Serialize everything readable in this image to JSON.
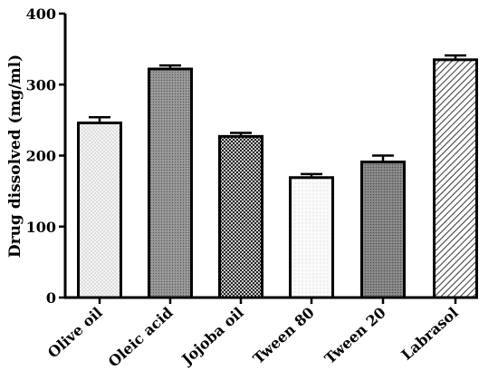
{
  "chart_data": {
    "type": "bar",
    "title": "",
    "xlabel": "",
    "ylabel": "Drug dissolved (mg/ml)",
    "categories": [
      "Olive oil",
      "Oleic acid",
      "Jojoba oil",
      "Tween 80",
      "Tween 20",
      "Labrasol"
    ],
    "values": [
      246,
      322,
      227,
      169,
      191,
      335
    ],
    "errors": [
      8,
      5,
      5,
      5,
      9,
      6
    ],
    "ylim": [
      0,
      400
    ],
    "yticks": [
      0,
      100,
      200,
      300,
      400
    ],
    "grid": false,
    "legend": "none",
    "bar_fill": "patterned",
    "colors": {
      "bar_stroke": "#000000",
      "axis": "#000000"
    }
  }
}
